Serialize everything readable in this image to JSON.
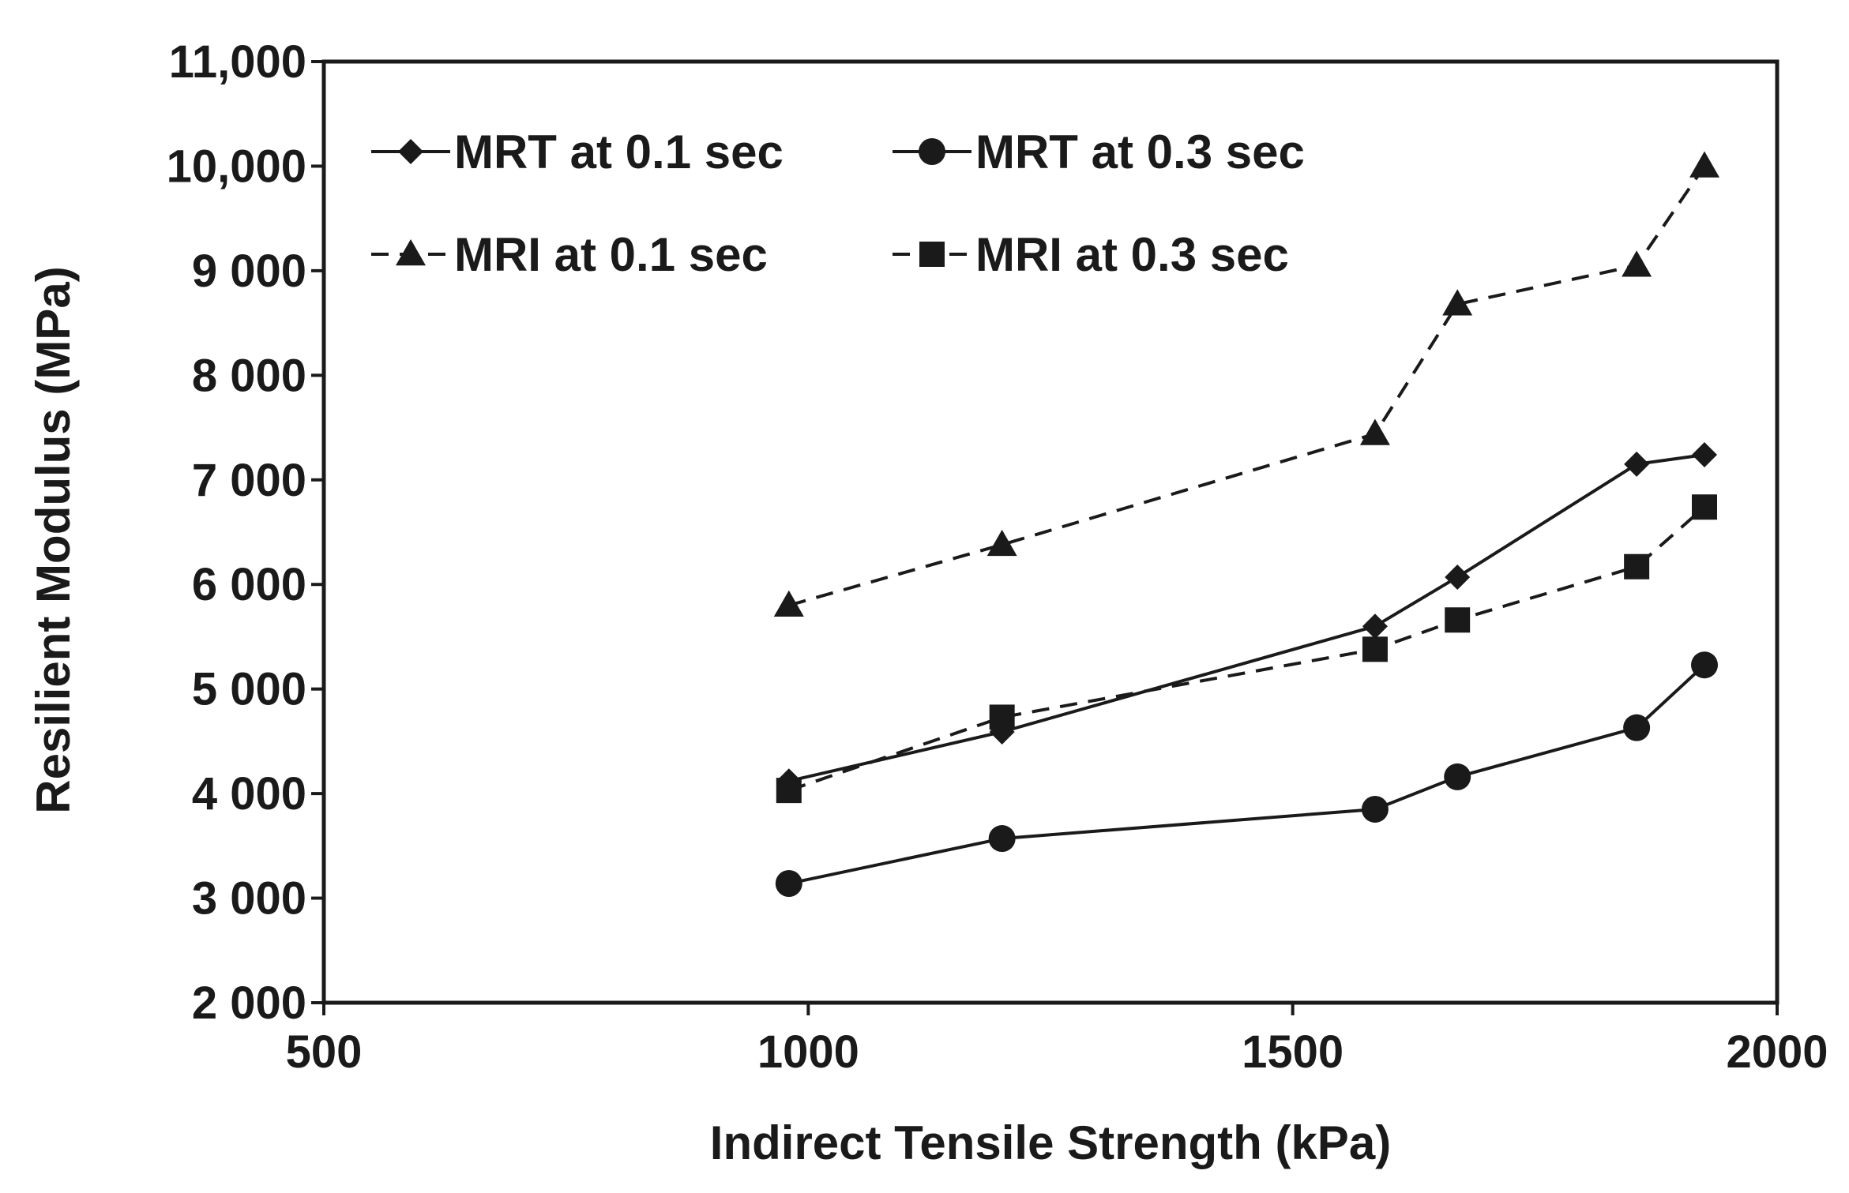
{
  "chart_data": {
    "type": "line",
    "title": "",
    "xlabel": "Indirect Tensile Strength (kPa)",
    "ylabel": "Resilient Modulus (MPa)",
    "xlim": [
      500,
      2000
    ],
    "ylim": [
      2000,
      11000
    ],
    "x_ticks": [
      {
        "value": 500,
        "label": "500"
      },
      {
        "value": 1000,
        "label": "1000"
      },
      {
        "value": 1500,
        "label": "1500"
      },
      {
        "value": 2000,
        "label": "2000"
      }
    ],
    "y_ticks": [
      {
        "value": 2000,
        "label": "2 000"
      },
      {
        "value": 3000,
        "label": "3 000"
      },
      {
        "value": 4000,
        "label": "4 000"
      },
      {
        "value": 5000,
        "label": "5 000"
      },
      {
        "value": 6000,
        "label": "6 000"
      },
      {
        "value": 7000,
        "label": "7 000"
      },
      {
        "value": 8000,
        "label": "8 000"
      },
      {
        "value": 9000,
        "label": "9 000"
      },
      {
        "value": 10000,
        "label": "10,000"
      },
      {
        "value": 11000,
        "label": "11,000"
      }
    ],
    "grid": false,
    "legend_position": "top-left",
    "series": [
      {
        "name": "MRT at 0.1 sec",
        "marker": "diamond",
        "line": "solid",
        "x": [
          980,
          1200,
          1585,
          1670,
          1855,
          1925
        ],
        "values": [
          4120,
          4590,
          5600,
          6070,
          7150,
          7240
        ]
      },
      {
        "name": "MRT at 0.3 sec",
        "marker": "circle",
        "line": "solid",
        "x": [
          980,
          1200,
          1585,
          1670,
          1855,
          1925
        ],
        "values": [
          3140,
          3570,
          3850,
          4160,
          4630,
          5230
        ]
      },
      {
        "name": "MRI at 0.1 sec",
        "marker": "triangle",
        "line": "dashed",
        "x": [
          980,
          1200,
          1585,
          1670,
          1855,
          1925
        ],
        "values": [
          5800,
          6380,
          7440,
          8680,
          9050,
          10000
        ]
      },
      {
        "name": "MRI at 0.3 sec",
        "marker": "square",
        "line": "dashed",
        "x": [
          980,
          1200,
          1585,
          1670,
          1855,
          1925
        ],
        "values": [
          4030,
          4730,
          5380,
          5660,
          6170,
          6740
        ]
      }
    ],
    "colors": {
      "line": "#1a1a1a",
      "axis": "#1a1a1a",
      "background": "#ffffff"
    }
  }
}
